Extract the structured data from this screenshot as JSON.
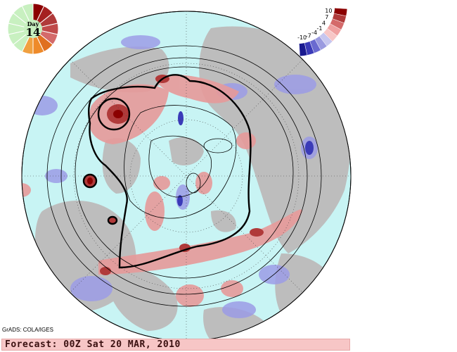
{
  "map": {
    "forecast_label": "Forecast: 00Z Sat 20 MAR, 2010",
    "credit": "GrADS: COLA/IGES",
    "day_word": "Day",
    "day_number": "14",
    "day_wheel": {
      "total_segments": 14,
      "current": 14
    },
    "legend": {
      "positive_labels": [
        "10",
        "7",
        "4"
      ],
      "negative_labels": [
        "-1",
        "-4",
        "-7",
        "-10"
      ],
      "positive_colors": [
        "#8b0000",
        "#b03a3a",
        "#d46a6a",
        "#efa0a0",
        "#f7c6c6"
      ],
      "negative_colors": [
        "#c6c6ef",
        "#9a9ae0",
        "#6a6ad0",
        "#3a3ab8",
        "#1a1a90"
      ]
    },
    "colors": {
      "ocean": "#c8f4f4",
      "land": "#bdbdbd",
      "warm": "#e79a9a",
      "cold": "#9c9ce6",
      "contour": "#000000"
    }
  }
}
